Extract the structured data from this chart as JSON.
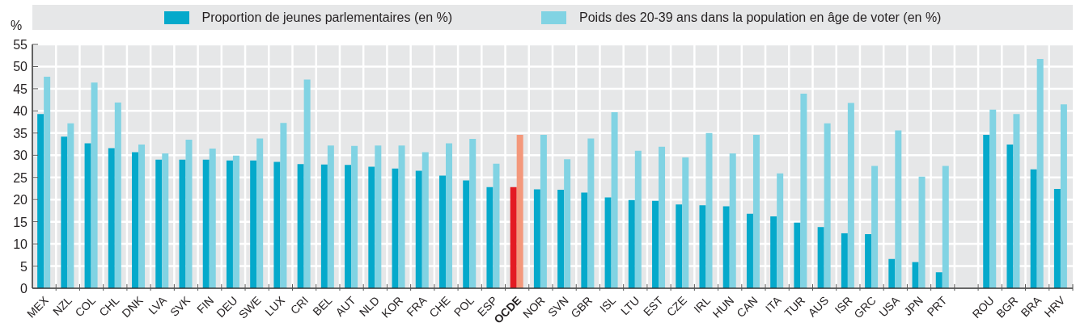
{
  "chart_data": {
    "type": "bar",
    "ylabel": "%",
    "legend": "top",
    "grid": true,
    "ylim": [
      0,
      55
    ],
    "yticks": [
      0,
      5,
      10,
      15,
      20,
      25,
      30,
      35,
      40,
      45,
      50,
      55
    ],
    "categories": [
      "MEX",
      "NZL",
      "COL",
      "CHL",
      "DNK",
      "LVA",
      "SVK",
      "FIN",
      "DEU",
      "SWE",
      "LUX",
      "CRI",
      "BEL",
      "AUT",
      "NLD",
      "KOR",
      "FRA",
      "CHE",
      "POL",
      "ESP",
      "OCDE",
      "NOR",
      "SVN",
      "GBR",
      "ISL",
      "LTU",
      "EST",
      "CZE",
      "IRL",
      "HUN",
      "CAN",
      "ITA",
      "TUR",
      "AUS",
      "ISR",
      "GRC",
      "USA",
      "JPN",
      "PRT",
      null,
      "ROU",
      "BGR",
      "BRA",
      "HRV"
    ],
    "series": [
      {
        "name": "Proportion de jeunes parlementaires (en %)",
        "color": "#05a9cb",
        "colors": [
          "#05a9cb",
          "#05a9cb",
          "#05a9cb",
          "#05a9cb",
          "#05a9cb",
          "#05a9cb",
          "#05a9cb",
          "#05a9cb",
          "#05a9cb",
          "#05a9cb",
          "#05a9cb",
          "#05a9cb",
          "#05a9cb",
          "#05a9cb",
          "#05a9cb",
          "#05a9cb",
          "#05a9cb",
          "#05a9cb",
          "#05a9cb",
          "#05a9cb",
          "#e31b23",
          "#05a9cb",
          "#05a9cb",
          "#05a9cb",
          "#05a9cb",
          "#05a9cb",
          "#05a9cb",
          "#05a9cb",
          "#05a9cb",
          "#05a9cb",
          "#05a9cb",
          "#05a9cb",
          "#05a9cb",
          "#05a9cb",
          "#05a9cb",
          "#05a9cb",
          "#05a9cb",
          "#05a9cb",
          "#05a9cb",
          "#05a9cb",
          "#05a9cb",
          "#05a9cb",
          "#05a9cb",
          "#05a9cb"
        ],
        "values": [
          39.3,
          34.2,
          32.7,
          31.6,
          30.7,
          29.0,
          29.0,
          29.0,
          28.8,
          28.8,
          28.5,
          28.0,
          27.9,
          27.8,
          27.4,
          27.0,
          26.5,
          25.4,
          24.3,
          22.8,
          22.8,
          22.3,
          22.2,
          21.6,
          20.5,
          19.9,
          19.7,
          18.9,
          18.7,
          18.5,
          16.8,
          16.2,
          14.8,
          13.8,
          12.4,
          12.2,
          6.6,
          5.9,
          3.6,
          null,
          34.6,
          32.4,
          26.8,
          22.4
        ]
      },
      {
        "name": "Poids des 20-39 ans dans la population en âge de voter (en %)",
        "color": "#81d3e3",
        "colors": [
          "#81d3e3",
          "#81d3e3",
          "#81d3e3",
          "#81d3e3",
          "#81d3e3",
          "#81d3e3",
          "#81d3e3",
          "#81d3e3",
          "#81d3e3",
          "#81d3e3",
          "#81d3e3",
          "#81d3e3",
          "#81d3e3",
          "#81d3e3",
          "#81d3e3",
          "#81d3e3",
          "#81d3e3",
          "#81d3e3",
          "#81d3e3",
          "#81d3e3",
          "#f4987b",
          "#81d3e3",
          "#81d3e3",
          "#81d3e3",
          "#81d3e3",
          "#81d3e3",
          "#81d3e3",
          "#81d3e3",
          "#81d3e3",
          "#81d3e3",
          "#81d3e3",
          "#81d3e3",
          "#81d3e3",
          "#81d3e3",
          "#81d3e3",
          "#81d3e3",
          "#81d3e3",
          "#81d3e3",
          "#81d3e3",
          "#81d3e3",
          "#81d3e3",
          "#81d3e3",
          "#81d3e3",
          "#81d3e3"
        ],
        "values": [
          47.7,
          37.2,
          46.4,
          41.9,
          32.4,
          30.4,
          33.5,
          31.5,
          29.9,
          33.8,
          37.3,
          47.1,
          32.2,
          32.1,
          32.2,
          32.2,
          30.7,
          32.7,
          33.7,
          28.1,
          34.6,
          34.6,
          29.1,
          33.8,
          39.7,
          31.0,
          31.9,
          29.5,
          35.0,
          30.4,
          34.6,
          25.9,
          43.9,
          37.2,
          41.8,
          27.6,
          35.6,
          25.2,
          27.6,
          null,
          40.3,
          39.3,
          51.7,
          41.5
        ]
      }
    ]
  }
}
